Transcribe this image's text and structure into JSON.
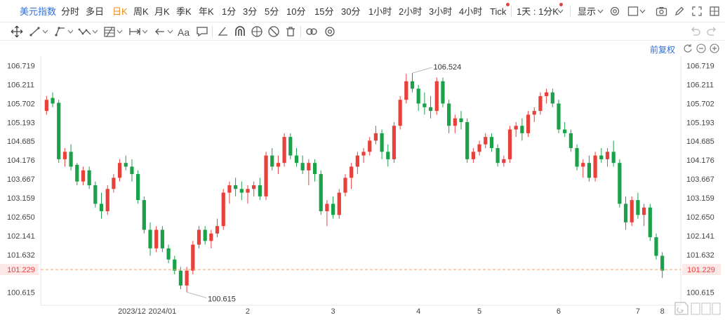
{
  "header": {
    "title": "美元指数",
    "periods": [
      "分时",
      "多日",
      "日K",
      "周K",
      "月K",
      "季K",
      "年K",
      "1分",
      "3分",
      "5分",
      "10分",
      "15分",
      "30分",
      "1小时",
      "2小时",
      "3小时",
      "4小时",
      "Tick"
    ],
    "active_period": "日K",
    "custom_period": "1天 : 1分K",
    "display_label": "显示"
  },
  "toolbar": {
    "font_label": "Aa",
    "tools": [
      "move-icon",
      "line-icon",
      "ray-icon",
      "polyline-icon",
      "fib-icon",
      "measure-icon",
      "arrow-icon",
      "text-icon",
      "note-icon",
      "angle-icon",
      "magnet-icon",
      "lock-icon",
      "hide-icon",
      "delete-icon",
      "link-icon",
      "settings-icon"
    ]
  },
  "chart_controls": {
    "adjust_label": "前复权"
  },
  "chart_data": {
    "type": "candlestick",
    "y_ticks": [
      "106.719",
      "106.211",
      "105.702",
      "105.193",
      "104.685",
      "104.176",
      "103.667",
      "103.159",
      "102.650",
      "102.141",
      "101.632",
      "101.229",
      "100.615"
    ],
    "ylim": [
      100.4,
      106.9
    ],
    "x_ticks": [
      "2023/12",
      "2024/01",
      "2",
      "3",
      "4",
      "5",
      "6",
      "7",
      "8"
    ],
    "current_price": "101.229",
    "high_annotation": "106.524",
    "low_annotation": "100.615",
    "up_color": "#e8403a",
    "down_color": "#1aa14a",
    "ohlc": [
      [
        105.5,
        105.9,
        105.4,
        105.8
      ],
      [
        105.85,
        106.0,
        105.6,
        105.7
      ],
      [
        105.72,
        105.8,
        104.1,
        104.2
      ],
      [
        104.2,
        104.5,
        104.0,
        104.4
      ],
      [
        104.4,
        104.6,
        103.9,
        104.0
      ],
      [
        104.05,
        104.1,
        103.5,
        103.6
      ],
      [
        103.6,
        104.0,
        103.5,
        103.9
      ],
      [
        103.9,
        104.0,
        103.4,
        103.5
      ],
      [
        103.5,
        103.6,
        102.9,
        103.0
      ],
      [
        103.0,
        103.3,
        102.6,
        102.8
      ],
      [
        102.8,
        103.5,
        102.7,
        103.4
      ],
      [
        103.4,
        103.8,
        103.3,
        103.7
      ],
      [
        103.7,
        104.2,
        103.6,
        104.1
      ],
      [
        104.1,
        104.3,
        103.9,
        104.0
      ],
      [
        104.0,
        104.2,
        103.6,
        103.8
      ],
      [
        103.8,
        103.9,
        103.0,
        103.1
      ],
      [
        103.1,
        103.2,
        102.2,
        102.3
      ],
      [
        102.3,
        102.5,
        101.6,
        101.8
      ],
      [
        101.8,
        102.4,
        101.7,
        102.3
      ],
      [
        102.3,
        102.4,
        101.7,
        101.8
      ],
      [
        101.8,
        101.9,
        101.4,
        101.5
      ],
      [
        101.5,
        101.6,
        101.1,
        101.2
      ],
      [
        101.2,
        101.3,
        100.7,
        100.8
      ],
      [
        100.8,
        101.3,
        100.62,
        101.2
      ],
      [
        101.2,
        102.0,
        101.1,
        101.9
      ],
      [
        101.9,
        102.4,
        101.8,
        102.3
      ],
      [
        102.3,
        102.4,
        101.9,
        102.0
      ],
      [
        102.0,
        102.3,
        101.8,
        102.2
      ],
      [
        102.2,
        102.6,
        102.1,
        102.4
      ],
      [
        102.4,
        103.4,
        102.3,
        103.3
      ],
      [
        103.3,
        103.6,
        103.0,
        103.5
      ],
      [
        103.5,
        103.7,
        103.2,
        103.4
      ],
      [
        103.4,
        103.6,
        103.1,
        103.3
      ],
      [
        103.3,
        103.5,
        103.0,
        103.4
      ],
      [
        103.4,
        103.6,
        103.2,
        103.5
      ],
      [
        103.5,
        103.7,
        103.1,
        103.2
      ],
      [
        103.2,
        104.4,
        103.1,
        104.3
      ],
      [
        104.3,
        104.5,
        103.9,
        104.0
      ],
      [
        104.0,
        104.3,
        103.8,
        104.1
      ],
      [
        104.1,
        104.9,
        104.0,
        104.8
      ],
      [
        104.8,
        104.9,
        104.2,
        104.3
      ],
      [
        104.3,
        104.5,
        104.0,
        104.1
      ],
      [
        104.1,
        104.3,
        103.8,
        103.9
      ],
      [
        103.9,
        104.2,
        103.5,
        104.1
      ],
      [
        104.1,
        104.2,
        103.6,
        103.8
      ],
      [
        103.8,
        103.9,
        102.7,
        102.8
      ],
      [
        102.8,
        103.1,
        102.4,
        103.0
      ],
      [
        103.0,
        103.2,
        102.6,
        102.7
      ],
      [
        102.7,
        103.4,
        102.6,
        103.3
      ],
      [
        103.3,
        103.8,
        103.2,
        103.7
      ],
      [
        103.7,
        104.1,
        103.4,
        104.0
      ],
      [
        104.0,
        104.4,
        103.8,
        104.3
      ],
      [
        104.3,
        104.5,
        104.1,
        104.4
      ],
      [
        104.4,
        104.8,
        104.3,
        104.7
      ],
      [
        104.7,
        105.1,
        104.6,
        104.9
      ],
      [
        104.9,
        105.0,
        104.2,
        104.4
      ],
      [
        104.4,
        104.6,
        104.0,
        104.2
      ],
      [
        104.2,
        105.2,
        104.1,
        105.1
      ],
      [
        105.1,
        105.9,
        105.0,
        105.8
      ],
      [
        105.8,
        106.5,
        105.7,
        106.3
      ],
      [
        106.3,
        106.52,
        106.0,
        106.1
      ],
      [
        106.1,
        106.2,
        105.5,
        105.7
      ],
      [
        105.7,
        106.0,
        105.4,
        105.6
      ],
      [
        105.6,
        105.9,
        105.3,
        105.5
      ],
      [
        105.5,
        106.4,
        105.4,
        106.3
      ],
      [
        106.3,
        106.4,
        105.6,
        105.7
      ],
      [
        105.7,
        105.8,
        104.9,
        105.1
      ],
      [
        105.1,
        105.4,
        104.9,
        105.3
      ],
      [
        105.3,
        105.5,
        105.0,
        105.2
      ],
      [
        105.2,
        105.3,
        104.1,
        104.2
      ],
      [
        104.2,
        104.5,
        104.1,
        104.4
      ],
      [
        104.4,
        104.7,
        104.3,
        104.6
      ],
      [
        104.6,
        104.9,
        104.5,
        104.8
      ],
      [
        104.8,
        104.9,
        104.4,
        104.5
      ],
      [
        104.5,
        104.6,
        104.0,
        104.1
      ],
      [
        104.1,
        104.3,
        104.0,
        104.2
      ],
      [
        104.2,
        105.1,
        104.1,
        105.0
      ],
      [
        105.0,
        105.2,
        104.8,
        105.1
      ],
      [
        105.1,
        105.3,
        104.7,
        104.9
      ],
      [
        104.9,
        105.5,
        104.8,
        105.4
      ],
      [
        105.4,
        105.6,
        105.2,
        105.5
      ],
      [
        105.5,
        106.0,
        105.4,
        105.9
      ],
      [
        105.9,
        106.1,
        105.7,
        106.0
      ],
      [
        106.0,
        106.1,
        105.6,
        105.7
      ],
      [
        105.7,
        105.8,
        104.9,
        105.0
      ],
      [
        105.0,
        105.2,
        104.8,
        104.9
      ],
      [
        104.9,
        105.0,
        104.4,
        104.5
      ],
      [
        104.5,
        104.6,
        103.9,
        104.0
      ],
      [
        104.0,
        104.2,
        103.7,
        104.1
      ],
      [
        104.1,
        104.3,
        103.6,
        103.7
      ],
      [
        103.7,
        104.4,
        103.6,
        104.3
      ],
      [
        104.3,
        104.5,
        104.1,
        104.2
      ],
      [
        104.2,
        104.5,
        104.0,
        104.4
      ],
      [
        104.4,
        104.7,
        104.0,
        104.1
      ],
      [
        104.1,
        104.2,
        102.9,
        103.0
      ],
      [
        103.0,
        103.2,
        102.3,
        102.5
      ],
      [
        102.5,
        103.2,
        102.4,
        103.1
      ],
      [
        103.1,
        103.3,
        102.6,
        102.7
      ],
      [
        102.7,
        103.0,
        102.4,
        102.9
      ],
      [
        102.9,
        103.0,
        102.0,
        102.1
      ],
      [
        102.1,
        102.2,
        101.5,
        101.6
      ],
      [
        101.6,
        101.7,
        101.0,
        101.2
      ]
    ]
  }
}
